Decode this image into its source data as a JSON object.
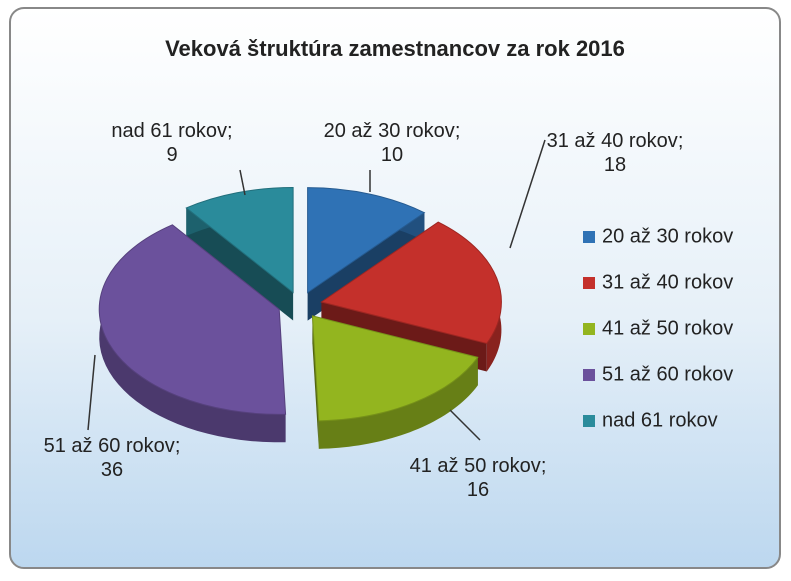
{
  "chart_data": {
    "type": "pie3d",
    "title": "Veková štruktúra zamestnancov  za rok 2016",
    "categories": [
      "20 až 30 rokov",
      "31 až 40 rokov",
      "41 až 50 rokov",
      "51 až 60 rokov",
      "nad 61 rokov"
    ],
    "values": [
      10,
      18,
      16,
      36,
      9
    ],
    "colors": [
      "#2f72b5",
      "#c4302b",
      "#93b51f",
      "#6b519c",
      "#2a8b9b"
    ],
    "label_separator": ";",
    "legend": "right"
  }
}
